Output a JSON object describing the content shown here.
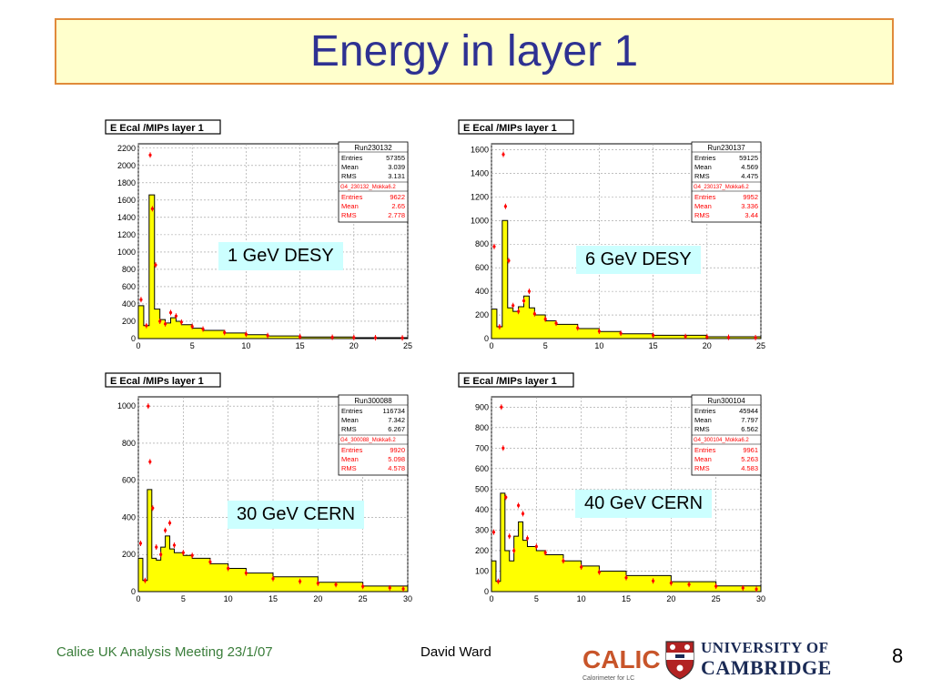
{
  "slide": {
    "title": "Energy in layer 1",
    "footer_left": "Calice UK Analysis Meeting 23/1/07",
    "footer_author": "David Ward",
    "page_number": "8",
    "logo_calice": "CALICE",
    "logo_calice_sub": "Calorimeter for LC",
    "logo_cambridge_line1": "UNIVERSITY OF",
    "logo_cambridge_line2": "CAMBRIDGE"
  },
  "colors": {
    "title": "#2e3192",
    "title_bg": "#ffffcc",
    "title_border": "#e08a3a",
    "histogram_fill": "#ffff00",
    "histogram_line": "#000000",
    "data_points": "#ff0000",
    "label_bg": "#ccffff",
    "footer_left": "#3a7d3a"
  },
  "chart_data": [
    {
      "type": "bar",
      "hist_title": "E Ecal /MIPs layer 1",
      "label": "1 GeV DESY",
      "xlim": [
        0,
        25
      ],
      "ylim": [
        0,
        2250
      ],
      "xticks": [
        0,
        5,
        10,
        15,
        20,
        25
      ],
      "yticks": [
        0,
        200,
        400,
        600,
        800,
        1000,
        1200,
        1400,
        1600,
        1800,
        2000,
        2200
      ],
      "stats_data": {
        "run": "Run230132",
        "entries": "57355",
        "mean": "3.039",
        "rms": "3.131"
      },
      "stats_mc": {
        "name": "G4_230132_Mokka6.2",
        "entries": "9622",
        "mean": "2.65",
        "rms": "2.778"
      },
      "mc_hist": {
        "x": [
          0,
          0.5,
          1.0,
          1.5,
          2.0,
          2.5,
          3.0,
          3.5,
          4.0,
          5.0,
          6.0,
          8.0,
          10.0,
          12.0,
          15.0,
          20.0,
          25.0
        ],
        "y": [
          380,
          150,
          1660,
          340,
          220,
          180,
          240,
          200,
          160,
          120,
          95,
          65,
          45,
          30,
          18,
          10,
          5
        ]
      },
      "points": {
        "x": [
          0.25,
          0.75,
          1.1,
          1.3,
          1.6,
          2.0,
          2.5,
          3.0,
          3.5,
          4.0,
          5.0,
          6.0,
          8.0,
          10.0,
          12.0,
          15.0,
          18.0,
          20.0,
          22.0,
          24.5
        ],
        "y": [
          450,
          150,
          2120,
          1500,
          850,
          200,
          170,
          300,
          260,
          190,
          140,
          110,
          70,
          50,
          35,
          22,
          15,
          12,
          10,
          8
        ]
      }
    },
    {
      "type": "bar",
      "hist_title": "E Ecal /MIPs layer 1",
      "label": "6 GeV DESY",
      "xlim": [
        0,
        25
      ],
      "ylim": [
        0,
        1650
      ],
      "xticks": [
        0,
        5,
        10,
        15,
        20,
        25
      ],
      "yticks": [
        0,
        200,
        400,
        600,
        800,
        1000,
        1200,
        1400,
        1600
      ],
      "stats_data": {
        "run": "Run230137",
        "entries": "59125",
        "mean": "4.569",
        "rms": "4.475"
      },
      "stats_mc": {
        "name": "G4_230137_Mokka6.2",
        "entries": "9952",
        "mean": "3.336",
        "rms": "3.44"
      },
      "mc_hist": {
        "x": [
          0,
          0.5,
          1.0,
          1.5,
          2.0,
          2.5,
          3.0,
          3.5,
          4.0,
          5.0,
          6.0,
          8.0,
          10.0,
          12.0,
          15.0,
          20.0,
          25.0
        ],
        "y": [
          250,
          100,
          1000,
          260,
          230,
          270,
          360,
          260,
          200,
          150,
          120,
          85,
          60,
          40,
          28,
          15,
          8
        ]
      },
      "points": {
        "x": [
          0.25,
          0.75,
          1.1,
          1.3,
          1.6,
          2.0,
          2.5,
          3.0,
          3.5,
          4.0,
          5.0,
          6.0,
          8.0,
          10.0,
          12.0,
          15.0,
          18.0,
          20.0,
          22.0,
          24.5
        ],
        "y": [
          780,
          100,
          1560,
          1120,
          660,
          280,
          230,
          320,
          400,
          210,
          165,
          130,
          90,
          62,
          45,
          28,
          18,
          14,
          11,
          8
        ]
      }
    },
    {
      "type": "bar",
      "hist_title": "E Ecal /MIPs layer 1",
      "label": "30 GeV CERN",
      "xlim": [
        0,
        30
      ],
      "ylim": [
        0,
        1050
      ],
      "xticks": [
        0,
        5,
        10,
        15,
        20,
        25,
        30
      ],
      "yticks": [
        0,
        200,
        400,
        600,
        800,
        1000
      ],
      "stats_data": {
        "run": "Run300088",
        "entries": "116734",
        "mean": "7.342",
        "rms": "6.267"
      },
      "stats_mc": {
        "name": "G4_300088_Mokka6.2",
        "entries": "9920",
        "mean": "5.098",
        "rms": "4.578"
      },
      "mc_hist": {
        "x": [
          0,
          0.5,
          1.0,
          1.5,
          2.0,
          2.5,
          3.0,
          3.5,
          4.0,
          5.0,
          6.0,
          8.0,
          10.0,
          12.0,
          15.0,
          20.0,
          25.0,
          30.0
        ],
        "y": [
          180,
          60,
          550,
          180,
          170,
          240,
          300,
          230,
          210,
          195,
          180,
          150,
          125,
          100,
          80,
          50,
          30,
          15
        ]
      },
      "points": {
        "x": [
          0.25,
          0.75,
          1.1,
          1.3,
          1.6,
          2.0,
          2.5,
          3.0,
          3.5,
          4.0,
          5.0,
          6.0,
          8.0,
          10.0,
          12.0,
          15.0,
          18.0,
          20.0,
          22.0,
          25.0,
          28.0,
          29.5
        ],
        "y": [
          260,
          60,
          1000,
          700,
          450,
          240,
          200,
          330,
          370,
          250,
          210,
          195,
          160,
          125,
          100,
          70,
          55,
          45,
          38,
          28,
          20,
          15
        ]
      }
    },
    {
      "type": "bar",
      "hist_title": "E Ecal /MIPs layer 1",
      "label": "40 GeV CERN",
      "xlim": [
        0,
        30
      ],
      "ylim": [
        0,
        950
      ],
      "xticks": [
        0,
        5,
        10,
        15,
        20,
        25,
        30
      ],
      "yticks": [
        0,
        100,
        200,
        300,
        400,
        500,
        600,
        700,
        800,
        900
      ],
      "stats_data": {
        "run": "Run300104",
        "entries": "45944",
        "mean": "7.797",
        "rms": "6.562"
      },
      "stats_mc": {
        "name": "G4_300104_Mokka6.2",
        "entries": "9961",
        "mean": "5.263",
        "rms": "4.583"
      },
      "mc_hist": {
        "x": [
          0,
          0.5,
          1.0,
          1.5,
          2.0,
          2.5,
          3.0,
          3.5,
          4.0,
          5.0,
          6.0,
          8.0,
          10.0,
          12.0,
          15.0,
          20.0,
          25.0,
          30.0
        ],
        "y": [
          150,
          50,
          480,
          200,
          150,
          270,
          340,
          250,
          220,
          200,
          180,
          150,
          125,
          100,
          78,
          48,
          28,
          14
        ]
      },
      "points": {
        "x": [
          0.25,
          0.75,
          1.1,
          1.3,
          1.6,
          2.0,
          2.5,
          3.0,
          3.5,
          4.0,
          5.0,
          6.0,
          8.0,
          10.0,
          12.0,
          15.0,
          18.0,
          20.0,
          22.0,
          25.0,
          28.0,
          29.5
        ],
        "y": [
          290,
          50,
          900,
          700,
          460,
          270,
          200,
          420,
          380,
          260,
          220,
          190,
          150,
          120,
          95,
          68,
          52,
          42,
          35,
          26,
          18,
          12
        ]
      }
    }
  ]
}
